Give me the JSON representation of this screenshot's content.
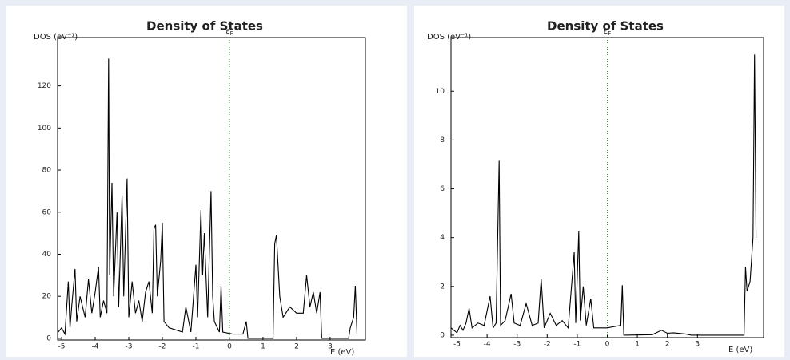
{
  "chart_data": [
    {
      "type": "line",
      "title": "Density of States",
      "y_label": "DOS (eV⁻¹)",
      "x_label": "E (eV)",
      "fermi_label": {
        "symbol": "ε",
        "subscript": "F"
      },
      "fermi_energy": 0,
      "fermi_color": "#2a9d2a",
      "xlim": [
        -5.12,
        4.05
      ],
      "xticks": [
        -5,
        -4,
        -3,
        -2,
        -1,
        0,
        1,
        2,
        3
      ],
      "ylim": [
        -0.8,
        143
      ],
      "yticks": [
        0,
        20,
        40,
        60,
        80,
        100,
        120
      ],
      "series": [
        {
          "name": "DOS",
          "color": "#000000",
          "x": [
            -5.1,
            -5.0,
            -4.9,
            -4.8,
            -4.75,
            -4.7,
            -4.6,
            -4.55,
            -4.45,
            -4.3,
            -4.2,
            -4.1,
            -4.0,
            -3.9,
            -3.85,
            -3.75,
            -3.65,
            -3.6,
            -3.57,
            -3.5,
            -3.45,
            -3.35,
            -3.3,
            -3.2,
            -3.15,
            -3.05,
            -3.0,
            -2.9,
            -2.8,
            -2.7,
            -2.6,
            -2.5,
            -2.4,
            -2.3,
            -2.25,
            -2.2,
            -2.15,
            -2.05,
            -2.0,
            -1.95,
            -1.8,
            -1.6,
            -1.4,
            -1.3,
            -1.15,
            -1.0,
            -0.95,
            -0.85,
            -0.8,
            -0.75,
            -0.65,
            -0.55,
            -0.5,
            -0.45,
            -0.3,
            -0.25,
            -0.2,
            0.1,
            0.4,
            0.5,
            0.55,
            1.3,
            1.35,
            1.4,
            1.5,
            1.6,
            1.8,
            2.0,
            2.2,
            2.3,
            2.4,
            2.5,
            2.6,
            2.7,
            2.75,
            3.55,
            3.6,
            3.7,
            3.75,
            3.8
          ],
          "values": [
            3,
            5,
            2,
            27,
            5,
            15,
            33,
            8,
            20,
            10,
            28,
            12,
            22,
            34,
            10,
            18,
            12,
            133,
            30,
            74,
            20,
            60,
            15,
            68,
            20,
            76,
            10,
            27,
            12,
            18,
            8,
            22,
            27,
            12,
            52,
            54,
            20,
            37,
            55,
            8,
            5,
            4,
            3,
            15,
            3,
            35,
            10,
            61,
            30,
            50,
            10,
            70,
            20,
            8,
            3,
            25,
            3,
            2,
            2,
            8,
            0,
            0,
            45,
            49,
            20,
            10,
            15,
            12,
            12,
            30,
            15,
            22,
            12,
            22,
            0,
            0,
            5,
            10,
            25,
            2
          ]
        }
      ]
    },
    {
      "type": "line",
      "title": "Density of States",
      "y_label": "DOS (eV⁻¹)",
      "x_label": "E (eV)",
      "fermi_label": {
        "symbol": "ε",
        "subscript": "F"
      },
      "fermi_energy": 0,
      "fermi_color": "#2a9d2a",
      "xlim": [
        -5.2,
        5.2
      ],
      "xticks": [
        -5,
        -4,
        -3,
        -2,
        -1,
        0,
        1,
        2,
        3
      ],
      "ylim": [
        -0.1,
        12.2
      ],
      "yticks": [
        0,
        2,
        4,
        6,
        8,
        10
      ],
      "series": [
        {
          "name": "DOS",
          "color": "#000000",
          "x": [
            -5.2,
            -5.0,
            -4.9,
            -4.8,
            -4.7,
            -4.6,
            -4.5,
            -4.3,
            -4.1,
            -3.9,
            -3.8,
            -3.7,
            -3.6,
            -3.55,
            -3.4,
            -3.2,
            -3.1,
            -2.9,
            -2.7,
            -2.5,
            -2.3,
            -2.2,
            -2.1,
            -1.9,
            -1.7,
            -1.5,
            -1.3,
            -1.1,
            -1.05,
            -0.95,
            -0.9,
            -0.8,
            -0.7,
            -0.55,
            -0.45,
            0.0,
            0.45,
            0.5,
            0.55,
            1.5,
            1.8,
            2.0,
            2.2,
            2.6,
            2.8,
            4.55,
            4.6,
            4.65,
            4.75,
            4.85,
            4.9,
            4.95
          ],
          "values": [
            0.3,
            0.1,
            0.4,
            0.2,
            0.5,
            1.1,
            0.3,
            0.5,
            0.4,
            1.6,
            0.3,
            0.5,
            7.15,
            0.4,
            0.6,
            1.7,
            0.5,
            0.4,
            1.3,
            0.4,
            0.5,
            2.3,
            0.3,
            0.9,
            0.4,
            0.6,
            0.3,
            3.4,
            0.5,
            4.25,
            0.6,
            2.0,
            0.4,
            1.5,
            0.3,
            0.3,
            0.4,
            2.05,
            0.0,
            0.02,
            0.2,
            0.08,
            0.1,
            0.05,
            0.0,
            0.0,
            2.8,
            1.8,
            2.2,
            4.0,
            11.5,
            4.0
          ]
        }
      ]
    }
  ]
}
